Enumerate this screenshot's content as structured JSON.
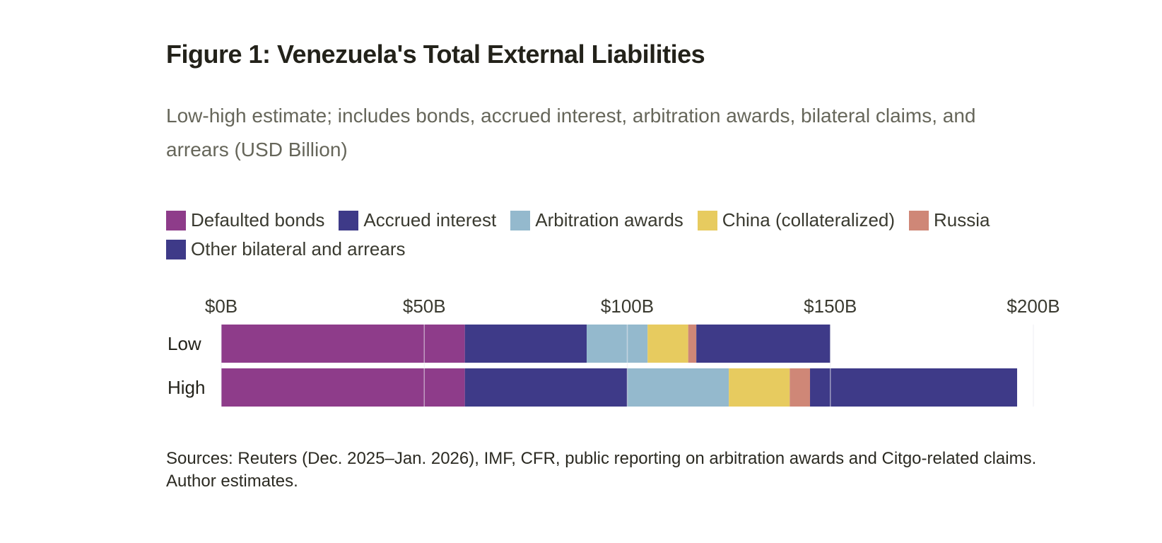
{
  "chart_data": {
    "type": "bar",
    "orientation": "horizontal",
    "stacked": true,
    "title": "Figure 1: Venezuela's Total External Liabilities",
    "subtitle": "Low-high estimate; includes bonds, accrued interest, arbitration awards, bilateral claims, and arrears (USD Billion)",
    "categories": [
      "Low",
      "High"
    ],
    "series": [
      {
        "name": "Defaulted bonds",
        "color": "#8e3c8a",
        "values": [
          60,
          60
        ]
      },
      {
        "name": "Accrued interest",
        "color": "#3e3a88",
        "values": [
          30,
          40
        ]
      },
      {
        "name": "Arbitration awards",
        "color": "#94b9cd",
        "values": [
          15,
          25
        ]
      },
      {
        "name": "China (collateralized)",
        "color": "#e7cb5f",
        "values": [
          10,
          15
        ]
      },
      {
        "name": "Russia",
        "color": "#cf8777",
        "values": [
          2,
          5
        ]
      },
      {
        "name": "Other bilateral and arrears",
        "color": "#3e3a88",
        "values": [
          33,
          51
        ]
      }
    ],
    "xlim": [
      0,
      200
    ],
    "xticks": [
      0,
      50,
      100,
      150,
      200
    ],
    "xtick_labels": [
      "$0B",
      "$50B",
      "$100B",
      "$150B",
      "$200B"
    ],
    "xlabel": "",
    "ylabel": "",
    "grid": true,
    "legend_position": "top-left",
    "axis_position": "top",
    "source": "Sources: Reuters (Dec. 2025–Jan. 2026), IMF, CFR, public reporting on arbitration awards and Citgo-related claims. Author estimates."
  }
}
